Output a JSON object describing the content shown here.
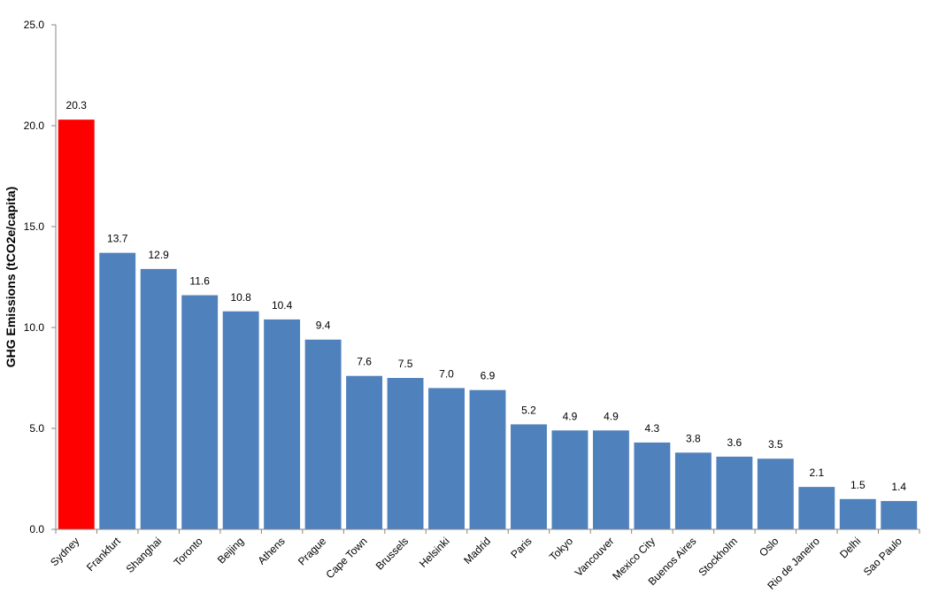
{
  "chart_data": {
    "type": "bar",
    "ylabel": "GHG Emissions (tCO2e/capita)",
    "ylim": [
      0,
      25
    ],
    "yticks": [
      "0.0",
      "5.0",
      "10.0",
      "15.0",
      "20.0",
      "25.0"
    ],
    "grid": false,
    "categories": [
      "Sydney",
      "Frankfurt",
      "Shanghai",
      "Toronto",
      "Beijing",
      "Athens",
      "Prague",
      "Cape Town",
      "Brussels",
      "Helsinki",
      "Madrid",
      "Paris",
      "Tokyo",
      "Vancouver",
      "Mexico City",
      "Buenos Aires",
      "Stockholm",
      "Oslo",
      "Rio de Janeiro",
      "Delhi",
      "Sao Paulo"
    ],
    "values": [
      20.3,
      13.7,
      12.9,
      11.6,
      10.8,
      10.4,
      9.4,
      7.6,
      7.5,
      7.0,
      6.9,
      5.2,
      4.9,
      4.9,
      4.3,
      3.8,
      3.6,
      3.5,
      2.1,
      1.5,
      1.4
    ],
    "value_labels": [
      "20.3",
      "13.7",
      "12.9",
      "11.6",
      "10.8",
      "10.4",
      "9.4",
      "7.6",
      "7.5",
      "7.0",
      "6.9",
      "5.2",
      "4.9",
      "4.9",
      "4.3",
      "3.8",
      "3.6",
      "3.5",
      "2.1",
      "1.5",
      "1.4"
    ],
    "colors": {
      "highlight": "#ff0000",
      "default": "#4f81bd",
      "axis": "#868686"
    },
    "highlight_index": 0
  }
}
